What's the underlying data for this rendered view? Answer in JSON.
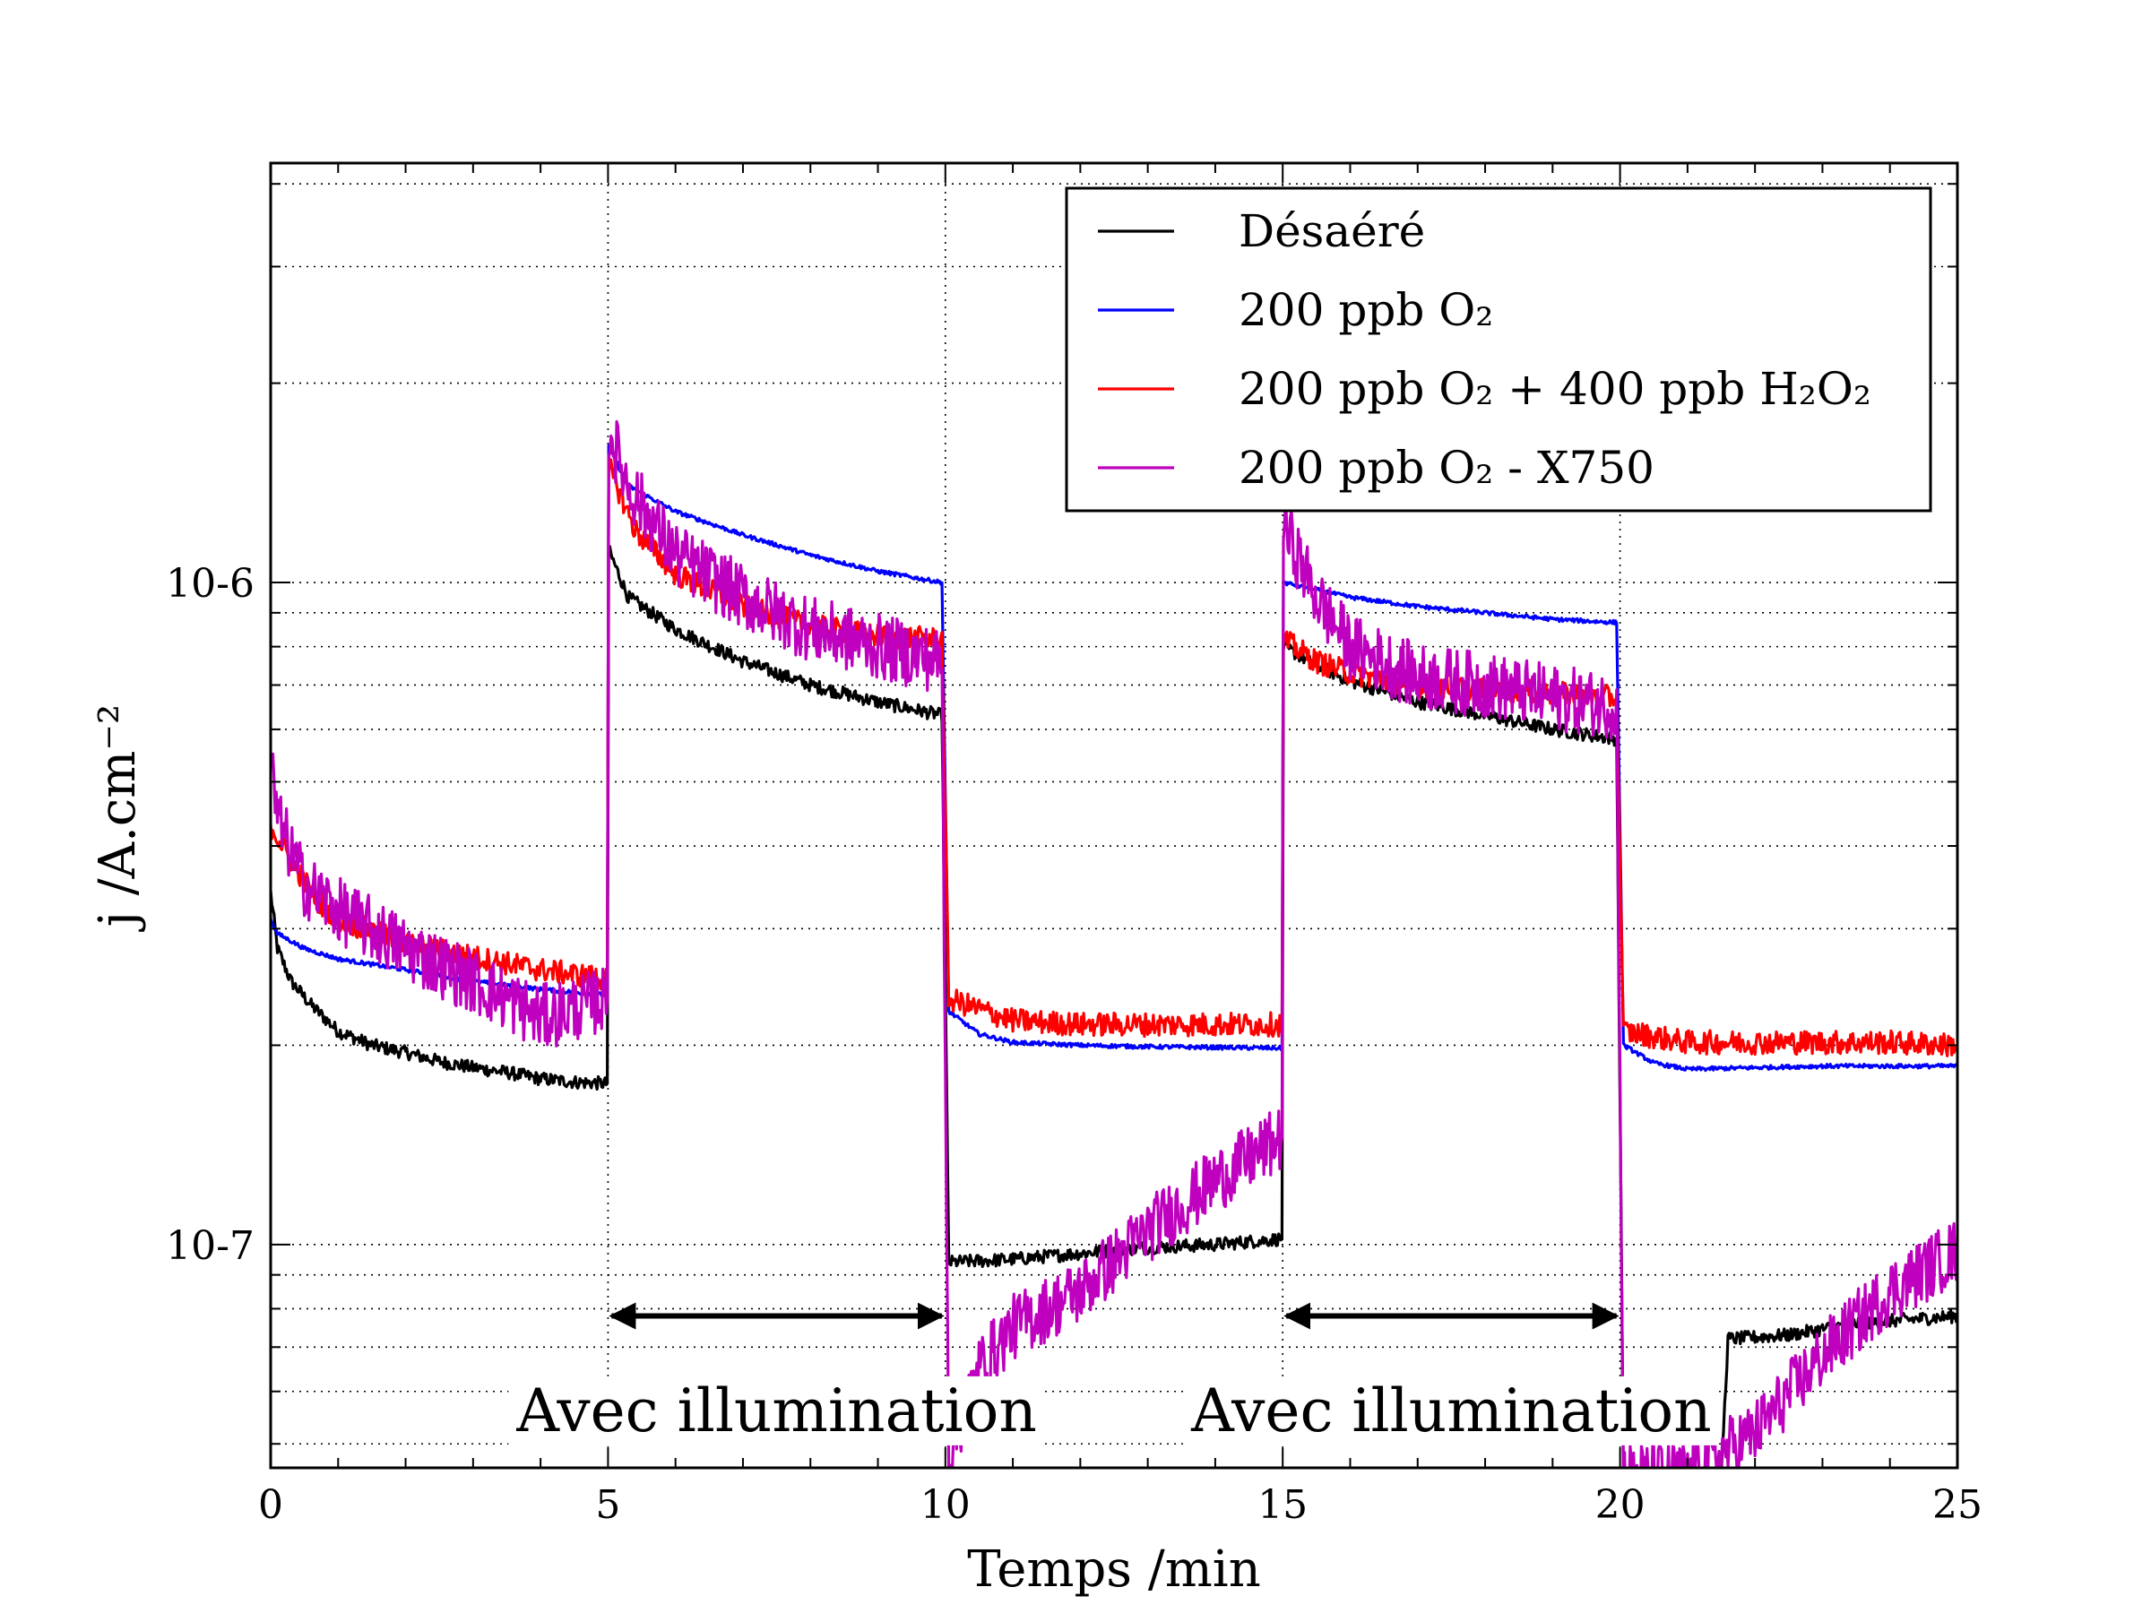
{
  "chart_data": {
    "type": "line",
    "xlabel": "Temps /min",
    "ylabel": "j /A.cm⁻²",
    "xlim": [
      0,
      25
    ],
    "ylim": [
      4.6e-08,
      4.3e-06
    ],
    "yscale": "log",
    "grid": true,
    "legend_position": "top-right",
    "xticks": [
      0,
      5,
      10,
      15,
      20,
      25
    ],
    "xtick_labels": [
      "0",
      "5",
      "10",
      "15",
      "20",
      "25"
    ],
    "yticks": [
      1e-07,
      1e-06
    ],
    "ytick_labels": [
      "10-7",
      "10-6"
    ],
    "series": [
      {
        "name": "Désaéré",
        "color": "#000000",
        "noise": 0.01,
        "points": [
          [
            0.0,
            3.4e-07
          ],
          [
            0.1,
            2.8e-07
          ],
          [
            0.3,
            2.5e-07
          ],
          [
            0.6,
            2.3e-07
          ],
          [
            1.0,
            2.1e-07
          ],
          [
            1.5,
            2e-07
          ],
          [
            2.0,
            1.95e-07
          ],
          [
            2.5,
            1.89e-07
          ],
          [
            3.0,
            1.85e-07
          ],
          [
            3.5,
            1.82e-07
          ],
          [
            4.0,
            1.78e-07
          ],
          [
            4.5,
            1.76e-07
          ],
          [
            4.99,
            1.75e-07
          ],
          [
            5.01,
            1.12e-06
          ],
          [
            5.3,
            9.5e-07
          ],
          [
            6.0,
            8.5e-07
          ],
          [
            7.0,
            7.6e-07
          ],
          [
            8.0,
            7e-07
          ],
          [
            9.0,
            6.6e-07
          ],
          [
            9.95,
            6.3e-07
          ],
          [
            10.05,
            9.4e-08
          ],
          [
            11.0,
            9.5e-08
          ],
          [
            12.0,
            9.7e-08
          ],
          [
            13.0,
            9.9e-08
          ],
          [
            14.0,
            1e-07
          ],
          [
            14.99,
            1.02e-07
          ],
          [
            15.01,
            8e-07
          ],
          [
            15.5,
            7.5e-07
          ],
          [
            16.0,
            7.1e-07
          ],
          [
            17.0,
            6.6e-07
          ],
          [
            18.0,
            6.3e-07
          ],
          [
            19.0,
            6e-07
          ],
          [
            19.95,
            5.8e-07
          ],
          [
            20.05,
            4.5e-08
          ],
          [
            21.5,
            4.5e-08
          ],
          [
            21.6,
            7.2e-08
          ],
          [
            22.5,
            7.3e-08
          ],
          [
            23.5,
            7.6e-08
          ],
          [
            25.0,
            7.8e-08
          ]
        ]
      },
      {
        "name": "200 ppb O₂",
        "color": "#0000ff",
        "noise": 0.003,
        "points": [
          [
            0.0,
            3.1e-07
          ],
          [
            0.1,
            2.95e-07
          ],
          [
            0.5,
            2.8e-07
          ],
          [
            1.0,
            2.7e-07
          ],
          [
            2.0,
            2.6e-07
          ],
          [
            3.0,
            2.5e-07
          ],
          [
            4.0,
            2.43e-07
          ],
          [
            4.99,
            2.38e-07
          ],
          [
            5.01,
            1.6e-06
          ],
          [
            5.3,
            1.4e-06
          ],
          [
            6.0,
            1.28e-06
          ],
          [
            7.0,
            1.18e-06
          ],
          [
            8.0,
            1.1e-06
          ],
          [
            9.0,
            1.04e-06
          ],
          [
            9.95,
            1e-06
          ],
          [
            10.05,
            2.25e-07
          ],
          [
            10.5,
            2.08e-07
          ],
          [
            11.0,
            2.02e-07
          ],
          [
            12.0,
            2e-07
          ],
          [
            13.0,
            1.99e-07
          ],
          [
            14.99,
            1.98e-07
          ],
          [
            15.01,
            1e-06
          ],
          [
            16.0,
            9.5e-07
          ],
          [
            17.0,
            9.2e-07
          ],
          [
            18.0,
            9e-07
          ],
          [
            19.0,
            8.8e-07
          ],
          [
            19.95,
            8.7e-07
          ],
          [
            20.05,
            2e-07
          ],
          [
            20.5,
            1.88e-07
          ],
          [
            21.0,
            1.84e-07
          ],
          [
            22.0,
            1.85e-07
          ],
          [
            23.0,
            1.86e-07
          ],
          [
            24.0,
            1.86e-07
          ],
          [
            25.0,
            1.86e-07
          ]
        ]
      },
      {
        "name": "200 ppb O₂ + 400 ppb H₂O₂",
        "color": "#ff0000",
        "noise": 0.018,
        "points": [
          [
            0.0,
            4.3e-07
          ],
          [
            0.3,
            3.8e-07
          ],
          [
            0.7,
            3.3e-07
          ],
          [
            1.0,
            3.1e-07
          ],
          [
            2.0,
            2.85e-07
          ],
          [
            3.0,
            2.72e-07
          ],
          [
            4.0,
            2.6e-07
          ],
          [
            4.99,
            2.52e-07
          ],
          [
            5.01,
            1.5e-06
          ],
          [
            5.4,
            1.2e-06
          ],
          [
            6.0,
            1.03e-06
          ],
          [
            7.0,
            9.2e-07
          ],
          [
            8.0,
            8.6e-07
          ],
          [
            9.0,
            8.3e-07
          ],
          [
            9.95,
            8.2e-07
          ],
          [
            10.05,
            2.35e-07
          ],
          [
            11.0,
            2.18e-07
          ],
          [
            12.0,
            2.15e-07
          ],
          [
            13.0,
            2.15e-07
          ],
          [
            14.0,
            2.15e-07
          ],
          [
            14.99,
            2.15e-07
          ],
          [
            15.01,
            8.2e-07
          ],
          [
            15.5,
            7.6e-07
          ],
          [
            16.0,
            7.3e-07
          ],
          [
            17.0,
            7e-07
          ],
          [
            18.0,
            6.9e-07
          ],
          [
            19.0,
            6.8e-07
          ],
          [
            19.95,
            6.7e-07
          ],
          [
            20.05,
            2.1e-07
          ],
          [
            21.0,
            2.02e-07
          ],
          [
            22.0,
            2.02e-07
          ],
          [
            23.0,
            2.02e-07
          ],
          [
            24.0,
            2.02e-07
          ],
          [
            25.0,
            2e-07
          ]
        ]
      },
      {
        "name": "200 ppb O₂ - X750",
        "color": "#bf00bf",
        "noise": 0.05,
        "points": [
          [
            0.0,
            5.4e-07
          ],
          [
            0.1,
            4.4e-07
          ],
          [
            0.5,
            3.5e-07
          ],
          [
            1.0,
            3.2e-07
          ],
          [
            2.0,
            2.8e-07
          ],
          [
            3.0,
            2.5e-07
          ],
          [
            4.0,
            2.2e-07
          ],
          [
            4.99,
            2.35e-07
          ],
          [
            5.01,
            1.7e-06
          ],
          [
            5.3,
            1.4e-06
          ],
          [
            6.0,
            1.1e-06
          ],
          [
            7.0,
            9.5e-07
          ],
          [
            8.0,
            8.5e-07
          ],
          [
            9.0,
            8e-07
          ],
          [
            9.95,
            7.6e-07
          ],
          [
            10.05,
            4.8e-08
          ],
          [
            10.5,
            6.5e-08
          ],
          [
            11.0,
            7.5e-08
          ],
          [
            12.0,
            8.5e-08
          ],
          [
            13.0,
            1.05e-07
          ],
          [
            14.0,
            1.25e-07
          ],
          [
            14.99,
            1.45e-07
          ],
          [
            15.01,
            1.22e-06
          ],
          [
            15.5,
            9.5e-07
          ],
          [
            16.0,
            8e-07
          ],
          [
            17.0,
            7.2e-07
          ],
          [
            18.0,
            7e-07
          ],
          [
            19.0,
            6.7e-07
          ],
          [
            19.95,
            6.5e-07
          ],
          [
            20.05,
            4.5e-08
          ],
          [
            21.0,
            4.5e-08
          ],
          [
            22.0,
            5.2e-08
          ],
          [
            23.0,
            6.8e-08
          ],
          [
            24.0,
            8.5e-08
          ],
          [
            25.0,
            9.8e-08
          ]
        ]
      }
    ],
    "annotations": [
      {
        "text": "Avec illumination",
        "arrow_x": [
          5,
          10
        ],
        "arrow_y": 7.8e-08,
        "text_x": 7.5,
        "text_y": 5.6e-08
      },
      {
        "text": "Avec illumination",
        "arrow_x": [
          15,
          20
        ],
        "arrow_y": 7.8e-08,
        "text_x": 17.5,
        "text_y": 5.6e-08
      }
    ]
  }
}
